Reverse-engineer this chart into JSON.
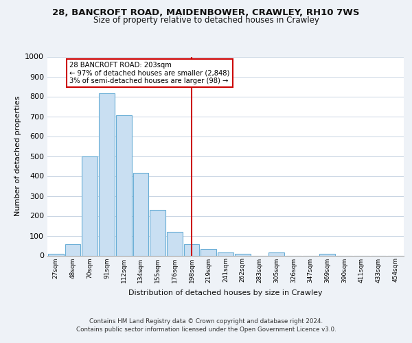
{
  "title1": "28, BANCROFT ROAD, MAIDENBOWER, CRAWLEY, RH10 7WS",
  "title2": "Size of property relative to detached houses in Crawley",
  "xlabel": "Distribution of detached houses by size in Crawley",
  "ylabel": "Number of detached properties",
  "bin_labels": [
    "27sqm",
    "48sqm",
    "70sqm",
    "91sqm",
    "112sqm",
    "134sqm",
    "155sqm",
    "176sqm",
    "198sqm",
    "219sqm",
    "241sqm",
    "262sqm",
    "283sqm",
    "305sqm",
    "326sqm",
    "347sqm",
    "369sqm",
    "390sqm",
    "411sqm",
    "433sqm",
    "454sqm"
  ],
  "bar_heights": [
    8,
    57,
    500,
    817,
    706,
    417,
    228,
    120,
    57,
    32,
    15,
    8,
    0,
    15,
    0,
    0,
    8,
    0,
    0,
    0,
    0
  ],
  "bar_color": "#c9dff2",
  "bar_edge_color": "#6aaed6",
  "vline_color": "#cc0000",
  "annotation_line1": "28 BANCROFT ROAD: 203sqm",
  "annotation_line2": "← 97% of detached houses are smaller (2,848)",
  "annotation_line3": "3% of semi-detached houses are larger (98) →",
  "annotation_box_color": "#ffffff",
  "annotation_box_edge": "#cc0000",
  "footer1": "Contains HM Land Registry data © Crown copyright and database right 2024.",
  "footer2": "Contains public sector information licensed under the Open Government Licence v3.0.",
  "ylim": [
    0,
    1000
  ],
  "yticks": [
    0,
    100,
    200,
    300,
    400,
    500,
    600,
    700,
    800,
    900,
    1000
  ],
  "bg_color": "#eef2f7",
  "plot_bg_color": "#ffffff",
  "grid_color": "#c8d4e3"
}
